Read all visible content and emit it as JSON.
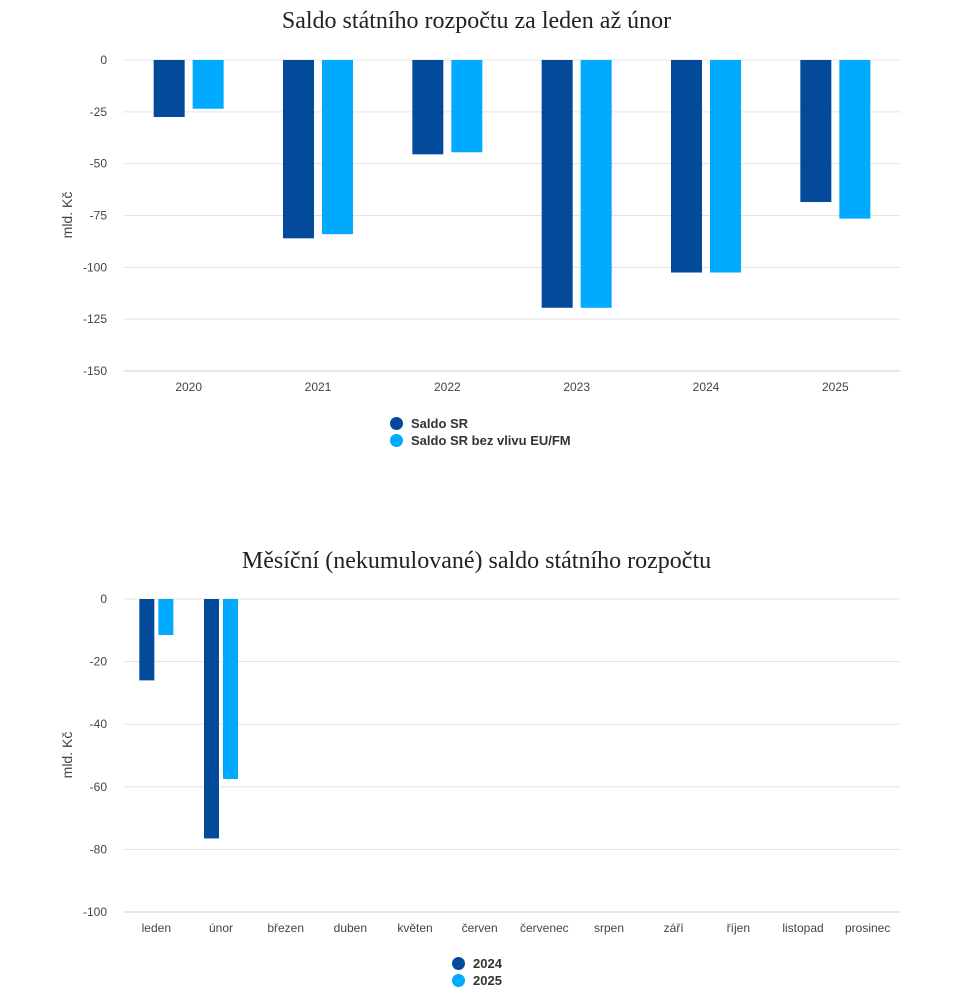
{
  "colors": {
    "series1": "#044a9a",
    "series2": "#00aaff",
    "grid": "#e3e3e3",
    "axis": "#cccccc"
  },
  "chart_data": [
    {
      "type": "bar",
      "title": "Saldo státního rozpočtu za leden až únor",
      "ylabel": "mld. Kč",
      "xlabel": "",
      "ylim": [
        -150,
        0
      ],
      "yticks": [
        0,
        -25,
        -50,
        -75,
        -100,
        -125,
        -150
      ],
      "yticks_labels": [
        "0",
        "-25",
        "-50",
        "-75",
        "-100",
        "-125",
        "-150"
      ],
      "categories": [
        "2020",
        "2021",
        "2022",
        "2023",
        "2024",
        "2025"
      ],
      "series": [
        {
          "name": "Saldo SR",
          "color": "#044a9a",
          "values": [
            -27.5,
            -86,
            -45.5,
            -119.5,
            -102.5,
            -68.5
          ]
        },
        {
          "name": "Saldo SR bez vlivu EU/FM",
          "color": "#00aaff",
          "values": [
            -23.5,
            -84,
            -44.5,
            -119.5,
            -102.5,
            -76.5
          ]
        }
      ],
      "legend_position": "bottom",
      "grid": true
    },
    {
      "type": "bar",
      "title": "Měsíční (nekumulované) saldo státního rozpočtu",
      "ylabel": "mld. Kč",
      "xlabel": "",
      "ylim": [
        -100,
        0
      ],
      "yticks": [
        0,
        -20,
        -40,
        -60,
        -80,
        -100
      ],
      "yticks_labels": [
        "0",
        "-20",
        "-40",
        "-60",
        "-80",
        "-100"
      ],
      "categories": [
        "leden",
        "únor",
        "březen",
        "duben",
        "květen",
        "červen",
        "červenec",
        "srpen",
        "září",
        "říjen",
        "listopad",
        "prosinec"
      ],
      "series": [
        {
          "name": "2024",
          "color": "#044a9a",
          "values": [
            -26,
            -76.5,
            null,
            null,
            null,
            null,
            null,
            null,
            null,
            null,
            null,
            null
          ]
        },
        {
          "name": "2025",
          "color": "#00aaff",
          "values": [
            -11.5,
            -57.5,
            null,
            null,
            null,
            null,
            null,
            null,
            null,
            null,
            null,
            null
          ]
        }
      ],
      "legend_position": "bottom",
      "grid": true
    }
  ]
}
